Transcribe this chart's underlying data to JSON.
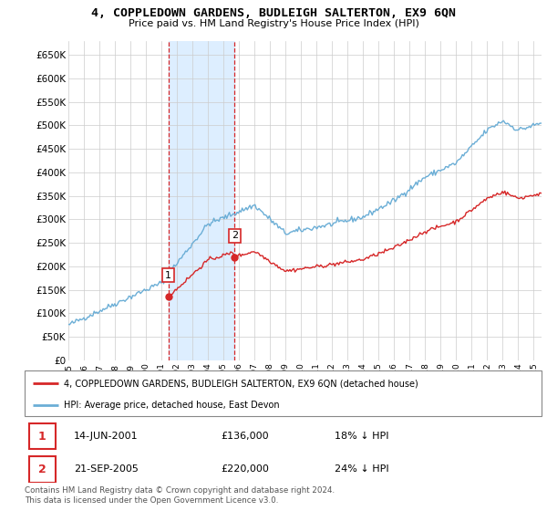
{
  "title": "4, COPPLEDOWN GARDENS, BUDLEIGH SALTERTON, EX9 6QN",
  "subtitle": "Price paid vs. HM Land Registry's House Price Index (HPI)",
  "ylabel_ticks": [
    "£0",
    "£50K",
    "£100K",
    "£150K",
    "£200K",
    "£250K",
    "£300K",
    "£350K",
    "£400K",
    "£450K",
    "£500K",
    "£550K",
    "£600K",
    "£650K"
  ],
  "ytick_vals": [
    0,
    50000,
    100000,
    150000,
    200000,
    250000,
    300000,
    350000,
    400000,
    450000,
    500000,
    550000,
    600000,
    650000
  ],
  "ylim": [
    0,
    680000
  ],
  "hpi_color": "#6baed6",
  "price_color": "#d62728",
  "vline_color": "#d62728",
  "shade_color": "#ddeeff",
  "transaction1_date": 2001.45,
  "transaction1_price": 136000,
  "transaction2_date": 2005.72,
  "transaction2_price": 220000,
  "legend_entry1": "4, COPPLEDOWN GARDENS, BUDLEIGH SALTERTON, EX9 6QN (detached house)",
  "legend_entry2": "HPI: Average price, detached house, East Devon",
  "table_row1": [
    "1",
    "14-JUN-2001",
    "£136,000",
    "18% ↓ HPI"
  ],
  "table_row2": [
    "2",
    "21-SEP-2005",
    "£220,000",
    "24% ↓ HPI"
  ],
  "footnote": "Contains HM Land Registry data © Crown copyright and database right 2024.\nThis data is licensed under the Open Government Licence v3.0.",
  "xmin": 1995,
  "xmax": 2025.5,
  "xtick_labels": [
    "1995",
    "1996",
    "1997",
    "1998",
    "1999",
    "2000",
    "2001",
    "2002",
    "2003",
    "2004",
    "2005",
    "2006",
    "2007",
    "2008",
    "2009",
    "2010",
    "2011",
    "2012",
    "2013",
    "2014",
    "2015",
    "2016",
    "2017",
    "2018",
    "2019",
    "2020",
    "2021",
    "2022",
    "2023",
    "2024",
    "2025"
  ]
}
